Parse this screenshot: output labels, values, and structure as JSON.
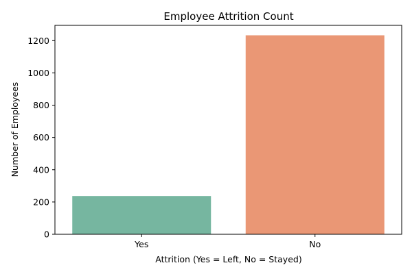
{
  "chart_data": {
    "type": "bar",
    "title": "Employee Attrition Count",
    "xlabel": "Attrition (Yes = Left, No = Stayed)",
    "ylabel": "Number of Employees",
    "categories": [
      "Yes",
      "No"
    ],
    "values": [
      237,
      1233
    ],
    "colors": [
      "#76b6a0",
      "#ea9775"
    ],
    "ylim": [
      0,
      1294.65
    ],
    "yticks": [
      0,
      200,
      400,
      600,
      800,
      1000,
      1200
    ],
    "grid": false,
    "legend": "none"
  }
}
